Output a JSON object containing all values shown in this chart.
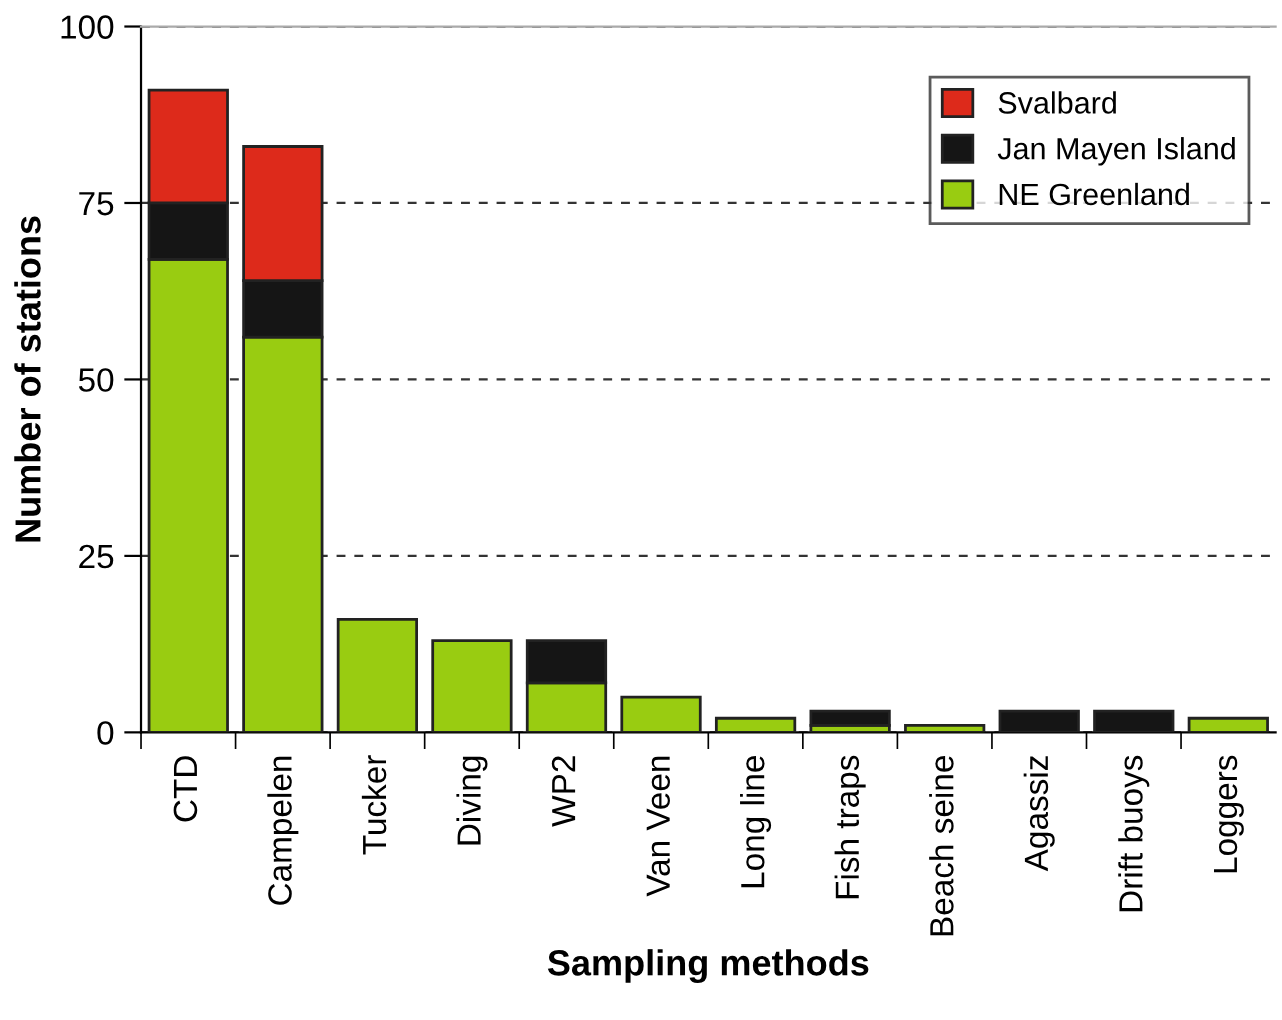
{
  "chart_data": {
    "type": "bar",
    "stacked": true,
    "xlabel": "Sampling methods",
    "ylabel": "Number of stations",
    "categories": [
      "CTD",
      "Campelen",
      "Tucker",
      "Diving",
      "WP2",
      "Van Veen",
      "Long line",
      "Fish traps",
      "Beach seine",
      "Agassiz",
      "Drift buoys",
      "Loggers"
    ],
    "series": [
      {
        "name": "NE Greenland",
        "color": "#99cc11",
        "values": [
          67,
          56,
          16,
          13,
          7,
          5,
          2,
          1,
          1,
          0,
          0,
          2
        ]
      },
      {
        "name": "Jan Mayen Island",
        "color": "#151515",
        "values": [
          8,
          8,
          0,
          0,
          6,
          0,
          0,
          2,
          0,
          3,
          3,
          0
        ]
      },
      {
        "name": "Svalbard",
        "color": "#dd2a1b",
        "values": [
          16,
          19,
          0,
          0,
          0,
          0,
          0,
          0,
          0,
          0,
          0,
          0
        ]
      }
    ],
    "ylim": [
      0,
      100
    ],
    "yticks": [
      0,
      25,
      50,
      75,
      100
    ],
    "grid": "y",
    "legend": "top right"
  }
}
